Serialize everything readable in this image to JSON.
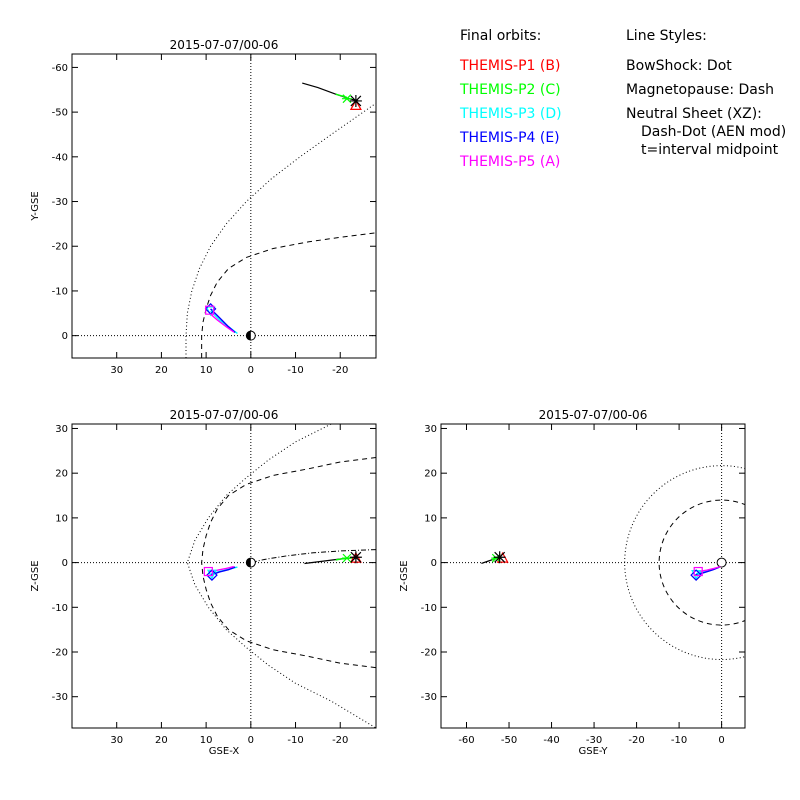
{
  "legend": {
    "orbits_header": "Final orbits:",
    "probes": [
      {
        "label": "THEMIS-P1 (B)",
        "color": "#ff0000"
      },
      {
        "label": "THEMIS-P2 (C)",
        "color": "#00ff00"
      },
      {
        "label": "THEMIS-P3 (D)",
        "color": "#00ffff"
      },
      {
        "label": "THEMIS-P4 (E)",
        "color": "#0000ff"
      },
      {
        "label": "THEMIS-P5 (A)",
        "color": "#ff00ff"
      }
    ],
    "styles_header": "Line Styles:",
    "styles": [
      "BowShock: Dot",
      "Magnetopause: Dash",
      "Neutral Sheet (XZ):",
      "Dash-Dot (AEN mod)",
      "t=interval midpoint"
    ]
  },
  "chart_data": [
    {
      "id": "xy",
      "type": "line",
      "title": "2015-07-07/00-06",
      "xlabel": "",
      "ylabel": "Y-GSE",
      "xlim": [
        40,
        -28
      ],
      "ylim": [
        5,
        -63
      ],
      "xticks": [
        30,
        20,
        10,
        0,
        -10,
        -20
      ],
      "yticks": [
        -60,
        -50,
        -40,
        -30,
        -20,
        -10,
        0
      ],
      "grid": false,
      "bowshock": [
        [
          14.5,
          5
        ],
        [
          14.5,
          0
        ],
        [
          14.2,
          -5
        ],
        [
          13.2,
          -10
        ],
        [
          11.5,
          -15
        ],
        [
          9,
          -20
        ],
        [
          5.5,
          -25
        ],
        [
          1,
          -30
        ],
        [
          -4.5,
          -35
        ],
        [
          -11,
          -40
        ],
        [
          -18,
          -45
        ],
        [
          -28,
          -52
        ]
      ],
      "magnetopause": [
        [
          11,
          5
        ],
        [
          11,
          0
        ],
        [
          10.7,
          -3
        ],
        [
          10,
          -6
        ],
        [
          9,
          -9
        ],
        [
          7.5,
          -12
        ],
        [
          5,
          -15
        ],
        [
          1,
          -17.5
        ],
        [
          -5,
          -19.5
        ],
        [
          -13,
          -21
        ],
        [
          -20,
          -22
        ],
        [
          -28,
          -23
        ]
      ],
      "orbits": [
        {
          "probe": 0,
          "points": [
            [
              -11.5,
              -56.5
            ],
            [
              -15,
              -55.5
            ],
            [
              -19,
              -54
            ],
            [
              -22,
              -53
            ],
            [
              -24,
              -52.5
            ]
          ],
          "marker_time": [
            -23.5,
            -52.5
          ],
          "marker_end": [
            -23.5,
            -51.5
          ]
        },
        {
          "probe": 1,
          "points": [
            [
              -19,
              -54
            ],
            [
              -21.5,
              -53.3
            ]
          ],
          "marker_time": [
            -21.5,
            -53
          ],
          "marker_end": null
        },
        {
          "probe": 2,
          "points": [
            [
              9,
              -5.5
            ],
            [
              7,
              -3.5
            ],
            [
              5,
              -2
            ],
            [
              3,
              -0.5
            ]
          ],
          "marker_time": [
            9,
            -5.5
          ],
          "marker_end": [
            9,
            -5.5
          ]
        },
        {
          "probe": 3,
          "points": [
            [
              9,
              -6
            ],
            [
              7,
              -4
            ],
            [
              5,
              -2
            ],
            [
              3.5,
              -0.7
            ]
          ],
          "marker_time": [
            9,
            -6
          ],
          "marker_end": [
            9,
            -6
          ]
        },
        {
          "probe": 4,
          "points": [
            [
              9.2,
              -5
            ],
            [
              7.5,
              -3.5
            ],
            [
              5.5,
              -2
            ],
            [
              3.8,
              -0.8
            ]
          ],
          "marker_time": [
            9,
            -5.5
          ],
          "marker_end": [
            9.2,
            -5.7
          ]
        }
      ],
      "star_marker": [
        -23.5,
        -52.5
      ]
    },
    {
      "id": "xz",
      "type": "line",
      "title": "2015-07-07/00-06",
      "xlabel": "GSE-X",
      "ylabel": "Z-GSE",
      "xlim": [
        40,
        -28
      ],
      "ylim": [
        -37,
        31
      ],
      "xticks": [
        30,
        20,
        10,
        0,
        -10,
        -20
      ],
      "yticks": [
        -30,
        -20,
        -10,
        0,
        10,
        20,
        30
      ],
      "grid": false,
      "bowshock": [
        [
          -28,
          37
        ],
        [
          -18,
          31
        ],
        [
          -10,
          27
        ],
        [
          -4,
          23
        ],
        [
          1,
          19
        ],
        [
          5.5,
          15
        ],
        [
          9.5,
          10
        ],
        [
          12.5,
          5
        ],
        [
          14.2,
          0
        ],
        [
          12.5,
          -5
        ],
        [
          9.5,
          -10
        ],
        [
          5.5,
          -15
        ],
        [
          1,
          -19
        ],
        [
          -4,
          -23
        ],
        [
          -10,
          -27
        ],
        [
          -18,
          -31
        ],
        [
          -28,
          -37
        ]
      ],
      "magnetopause": [
        [
          -28,
          23.5
        ],
        [
          -20,
          22.5
        ],
        [
          -13,
          21
        ],
        [
          -5,
          19.5
        ],
        [
          1,
          17.5
        ],
        [
          5,
          15
        ],
        [
          7.5,
          12
        ],
        [
          9,
          9
        ],
        [
          10,
          6
        ],
        [
          10.7,
          3
        ],
        [
          11,
          0
        ],
        [
          10.7,
          -3
        ],
        [
          10,
          -6
        ],
        [
          9,
          -9
        ],
        [
          7.5,
          -12
        ],
        [
          5,
          -15
        ],
        [
          1,
          -17.5
        ],
        [
          -5,
          -19.5
        ],
        [
          -13,
          -21
        ],
        [
          -20,
          -22.5
        ],
        [
          -28,
          -23.5
        ]
      ],
      "neutral_sheet": [
        [
          -28,
          2.9
        ],
        [
          -20,
          2.6
        ],
        [
          -14,
          2.2
        ],
        [
          -8,
          1.5
        ],
        [
          -3,
          0.7
        ],
        [
          0,
          0
        ]
      ],
      "orbits": [
        {
          "probe": 0,
          "points": [
            [
              -12,
              -0.2
            ],
            [
              -16,
              0.3
            ],
            [
              -20,
              0.8
            ],
            [
              -24,
              1.2
            ]
          ],
          "marker_time": [
            -23.5,
            1.2
          ],
          "marker_end": [
            -23.5,
            1
          ]
        },
        {
          "probe": 1,
          "points": [
            [
              -19,
              0.6
            ],
            [
              -21.5,
              1
            ]
          ],
          "marker_time": [
            -21.5,
            1
          ],
          "marker_end": null
        },
        {
          "probe": 2,
          "points": [
            [
              9,
              -2.5
            ],
            [
              7,
              -2
            ],
            [
              5,
              -1.5
            ],
            [
              3,
              -1
            ]
          ],
          "marker_time": [
            8.7,
            -2.6
          ],
          "marker_end": [
            8.7,
            -2.6
          ]
        },
        {
          "probe": 3,
          "points": [
            [
              9,
              -2.8
            ],
            [
              7,
              -2.1
            ],
            [
              5,
              -1.6
            ],
            [
              3.5,
              -1
            ]
          ],
          "marker_time": [
            8.7,
            -2.8
          ],
          "marker_end": [
            8.7,
            -2.8
          ]
        },
        {
          "probe": 4,
          "points": [
            [
              9.5,
              -2
            ],
            [
              7.5,
              -1.7
            ],
            [
              5.5,
              -1.3
            ],
            [
              3.8,
              -0.9
            ]
          ],
          "marker_time": [
            9,
            -2.2
          ],
          "marker_end": [
            9.5,
            -2
          ]
        }
      ],
      "star_marker": [
        -23.5,
        1.2
      ]
    },
    {
      "id": "yz",
      "type": "line",
      "title": "2015-07-07/00-06",
      "xlabel": "GSE-Y",
      "ylabel": "Z-GSE",
      "xlim": [
        -66,
        5.5
      ],
      "ylim": [
        -37,
        31
      ],
      "xticks": [
        -60,
        -50,
        -40,
        -30,
        -20,
        -10,
        0
      ],
      "yticks": [
        -30,
        -20,
        -10,
        0,
        10,
        20,
        30
      ],
      "grid": false,
      "bowshock_radius": 22.8,
      "magnetopause_radius": 14.7,
      "orbits": [
        {
          "probe": 0,
          "points": [
            [
              -56.5,
              -0.2
            ],
            [
              -55,
              0.3
            ],
            [
              -53.5,
              0.8
            ],
            [
              -52.2,
              1.2
            ]
          ],
          "marker_time": [
            -52.2,
            1.2
          ],
          "marker_end": [
            -51.5,
            1
          ]
        },
        {
          "probe": 1,
          "points": [
            [
              -54,
              0.6
            ],
            [
              -53,
              1
            ]
          ],
          "marker_time": [
            -53,
            1
          ],
          "marker_end": null
        },
        {
          "probe": 2,
          "points": [
            [
              -6,
              -2.5
            ],
            [
              -4,
              -2
            ],
            [
              -2,
              -1.5
            ],
            [
              -0.5,
              -1
            ]
          ],
          "marker_time": [
            -6,
            -2.7
          ],
          "marker_end": [
            -6,
            -2.7
          ]
        },
        {
          "probe": 3,
          "points": [
            [
              -6.2,
              -2.8
            ],
            [
              -4,
              -2.2
            ],
            [
              -2,
              -1.6
            ],
            [
              -0.5,
              -1
            ]
          ],
          "marker_time": [
            -6,
            -2.8
          ],
          "marker_end": [
            -6,
            -2.8
          ]
        },
        {
          "probe": 4,
          "points": [
            [
              -5.5,
              -2
            ],
            [
              -3.5,
              -1.7
            ],
            [
              -1.8,
              -1.3
            ],
            [
              -0.3,
              -0.9
            ]
          ],
          "marker_time": [
            -5.5,
            -2
          ],
          "marker_end": [
            -5.5,
            -2
          ]
        }
      ],
      "star_marker": [
        -52.2,
        1.2
      ]
    }
  ]
}
